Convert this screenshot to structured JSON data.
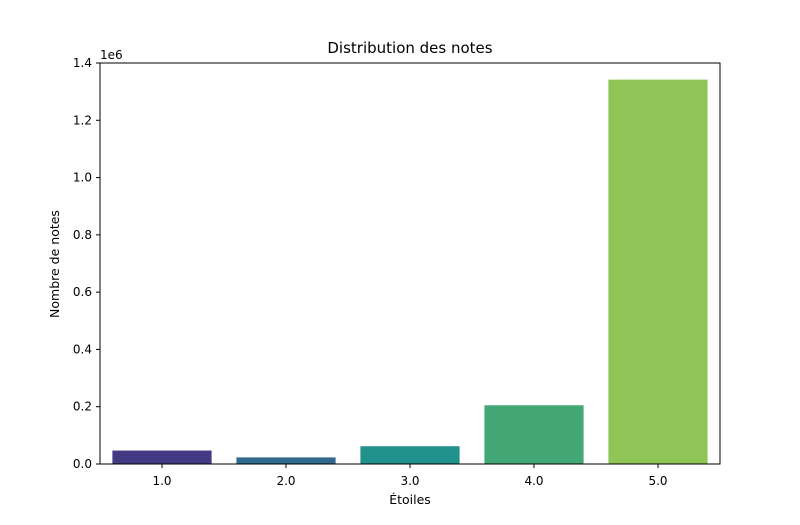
{
  "chart_data": {
    "type": "bar",
    "title": "Distribution des notes",
    "xlabel": "Étoiles",
    "ylabel": "Nombre de notes",
    "offset_text": "1e6",
    "categories": [
      "1.0",
      "2.0",
      "3.0",
      "4.0",
      "5.0"
    ],
    "values": [
      47000,
      23000,
      62000,
      205000,
      1342000
    ],
    "colors": [
      "#443a83",
      "#31688e",
      "#21918c",
      "#44a876",
      "#8fc556"
    ],
    "ylim": [
      0,
      1400000
    ],
    "yticks": [
      0,
      200000,
      400000,
      600000,
      800000,
      1000000,
      1200000,
      1400000
    ],
    "ytick_labels": [
      "0.0",
      "0.2",
      "0.4",
      "0.6",
      "0.8",
      "1.0",
      "1.2",
      "1.4"
    ],
    "grid": false,
    "legend": "none"
  }
}
